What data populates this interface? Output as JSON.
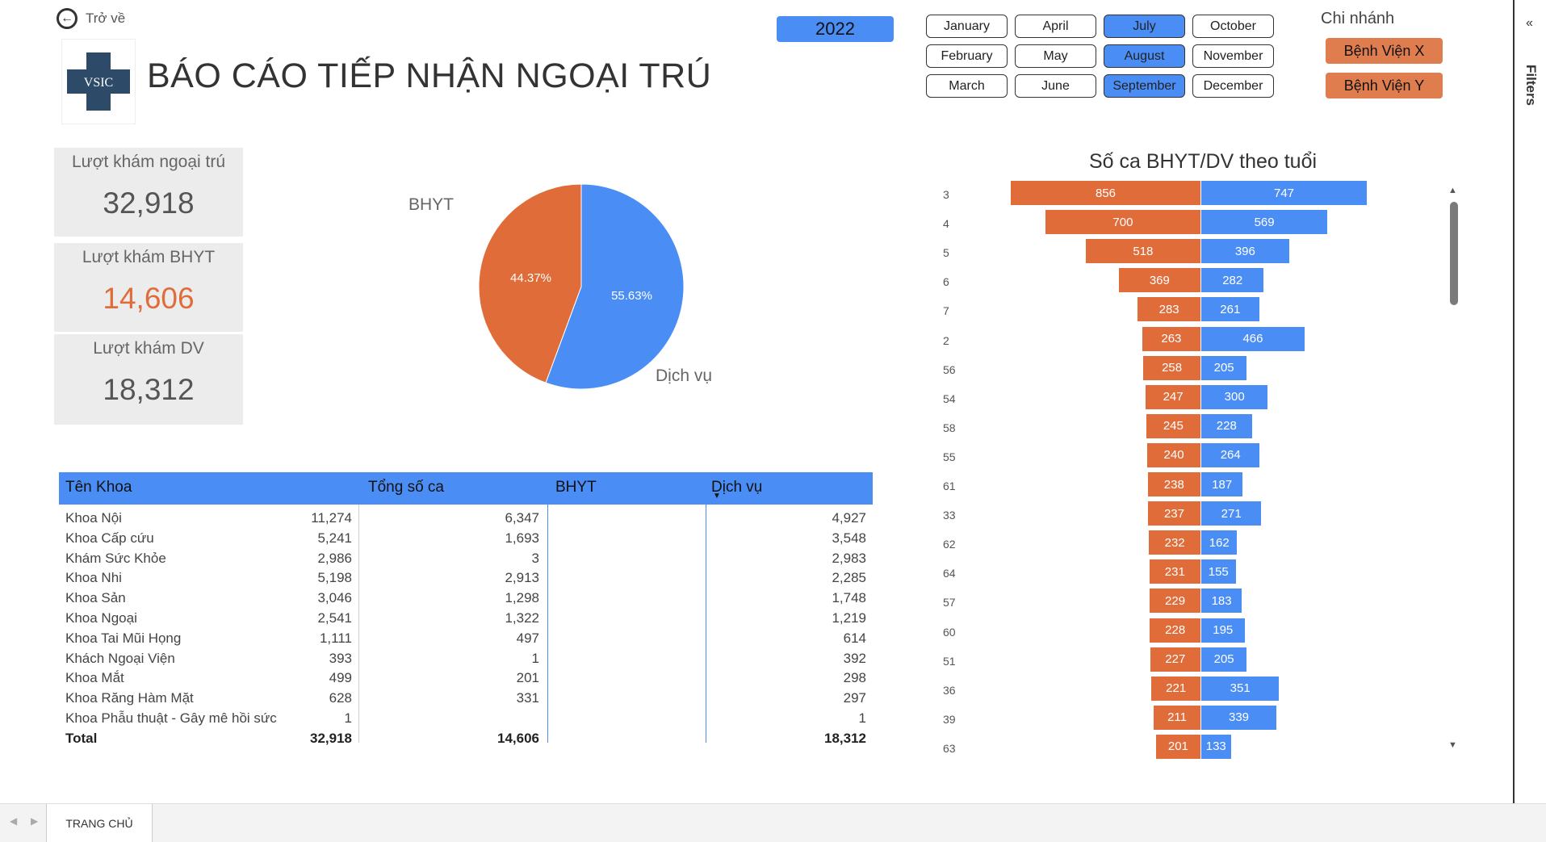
{
  "back": {
    "label": "Trở về"
  },
  "logo": {
    "text": "VSIC"
  },
  "title": "BÁO CÁO TIẾP NHẬN NGOẠI TRÚ",
  "year": "2022",
  "months": [
    {
      "label": "January",
      "selected": false
    },
    {
      "label": "April",
      "selected": false
    },
    {
      "label": "July",
      "selected": true
    },
    {
      "label": "October",
      "selected": false
    },
    {
      "label": "February",
      "selected": false
    },
    {
      "label": "May",
      "selected": false
    },
    {
      "label": "August",
      "selected": true
    },
    {
      "label": "November",
      "selected": false
    },
    {
      "label": "March",
      "selected": false
    },
    {
      "label": "June",
      "selected": false
    },
    {
      "label": "September",
      "selected": true
    },
    {
      "label": "December",
      "selected": false
    }
  ],
  "branch": {
    "label": "Chi nhánh",
    "options": [
      "Bệnh Viện X",
      "Bệnh Viện Y"
    ]
  },
  "kpis": [
    {
      "label": "Lượt khám ngoại trú",
      "value": "32,918",
      "color": "#555555"
    },
    {
      "label": "Lượt khám BHYT",
      "value": "14,606",
      "color": "#e06c3a"
    },
    {
      "label": "Lượt khám DV",
      "value": "18,312",
      "color": "#555555"
    }
  ],
  "colors": {
    "bhyt": "#e06c3a",
    "dv": "#4a8ef5",
    "accent": "#4a8ef5"
  },
  "table": {
    "headers": [
      "Tên Khoa",
      "Tổng số ca",
      "BHYT",
      "Dịch vụ"
    ],
    "rows": [
      [
        "Khoa Nội",
        "11,274",
        "6,347",
        "4,927"
      ],
      [
        "Khoa Cấp cứu",
        "5,241",
        "1,693",
        "3,548"
      ],
      [
        "Khám Sức Khỏe",
        "2,986",
        "3",
        "2,983"
      ],
      [
        "Khoa Nhi",
        "5,198",
        "2,913",
        "2,285"
      ],
      [
        "Khoa Sản",
        "3,046",
        "1,298",
        "1,748"
      ],
      [
        "Khoa Ngoại",
        "2,541",
        "1,322",
        "1,219"
      ],
      [
        "Khoa Tai Mũi Họng",
        "1,111",
        "497",
        "614"
      ],
      [
        "Khách Ngoại Viện",
        "393",
        "1",
        "392"
      ],
      [
        "Khoa Mắt",
        "499",
        "201",
        "298"
      ],
      [
        "Khoa Răng Hàm Mặt",
        "628",
        "331",
        "297"
      ],
      [
        "Khoa Phẫu thuật - Gây mê hồi sức",
        "1",
        "",
        "1"
      ]
    ],
    "total": [
      "Total",
      "32,918",
      "14,606",
      "18,312"
    ]
  },
  "chart_data": [
    {
      "type": "pie",
      "labels": [
        "BHYT",
        "Dịch vụ"
      ],
      "values": [
        44.37,
        55.63
      ],
      "value_labels": [
        "44.37%",
        "55.63%"
      ]
    },
    {
      "type": "bar",
      "orientation": "horizontal-diverging",
      "title": "Số ca BHYT/DV theo tuổi",
      "categories": [
        "3",
        "4",
        "5",
        "6",
        "7",
        "2",
        "56",
        "54",
        "58",
        "55",
        "61",
        "33",
        "62",
        "64",
        "57",
        "60",
        "51",
        "36",
        "39",
        "63"
      ],
      "series": [
        {
          "values": [
            856,
            700,
            518,
            369,
            283,
            263,
            258,
            247,
            245,
            240,
            238,
            237,
            232,
            231,
            229,
            228,
            227,
            221,
            211,
            201
          ]
        },
        {
          "values": [
            747,
            569,
            396,
            282,
            261,
            466,
            205,
            300,
            228,
            264,
            187,
            271,
            162,
            155,
            183,
            195,
            205,
            351,
            339,
            133
          ]
        }
      ]
    }
  ],
  "pagetab": {
    "label": "TRANG CHỦ"
  },
  "filters": {
    "label": "Filters"
  }
}
